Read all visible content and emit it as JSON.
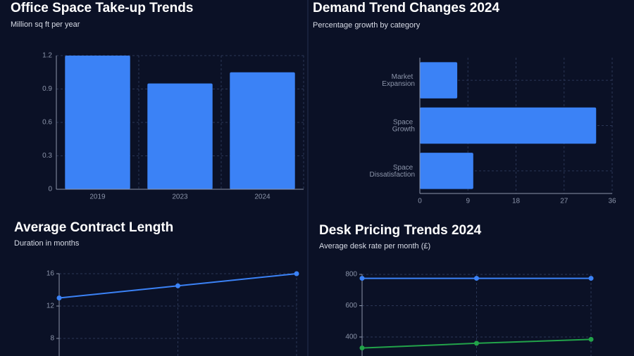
{
  "chart_data": [
    {
      "type": "bar",
      "title": "Office Space Take-up Trends",
      "subtitle": "Million sq ft per year",
      "categories": [
        "2019",
        "2023",
        "2024"
      ],
      "values": [
        1.2,
        0.95,
        1.05
      ],
      "color": "#3b82f6",
      "ylim": [
        0,
        1.2
      ],
      "yticks": [
        0,
        0.3,
        0.6,
        0.9,
        1.2
      ],
      "grid": true
    },
    {
      "type": "hbar",
      "title": "Demand Trend Changes 2024",
      "subtitle": "Percentage growth by category",
      "categories": [
        "Market Expansion",
        "Space Growth",
        "Space Dissatisfaction"
      ],
      "values": [
        7,
        33,
        10
      ],
      "color": "#3b82f6",
      "xlim": [
        0,
        36
      ],
      "xticks": [
        0,
        9,
        18,
        27,
        36
      ],
      "grid": true
    },
    {
      "type": "line",
      "title": "Average Contract Length",
      "subtitle": "Duration in months",
      "categories": [
        null,
        null,
        null
      ],
      "series": [
        {
          "color": "#3b82f6",
          "values": [
            13,
            14.5,
            16
          ]
        }
      ],
      "ylim": [
        0,
        16
      ],
      "yticks": [
        8,
        12,
        16
      ],
      "grid": true
    },
    {
      "type": "line",
      "title": "Desk Pricing Trends 2024",
      "subtitle": "Average desk rate per month (£)",
      "categories": [
        null,
        null,
        null
      ],
      "series": [
        {
          "color": "#3b82f6",
          "values": [
            775,
            775,
            775
          ]
        },
        {
          "color": "#22a34a",
          "values": [
            330,
            360,
            385
          ]
        }
      ],
      "ylim": [
        0,
        800
      ],
      "yticks": [
        400,
        600,
        800
      ],
      "grid": true
    }
  ]
}
